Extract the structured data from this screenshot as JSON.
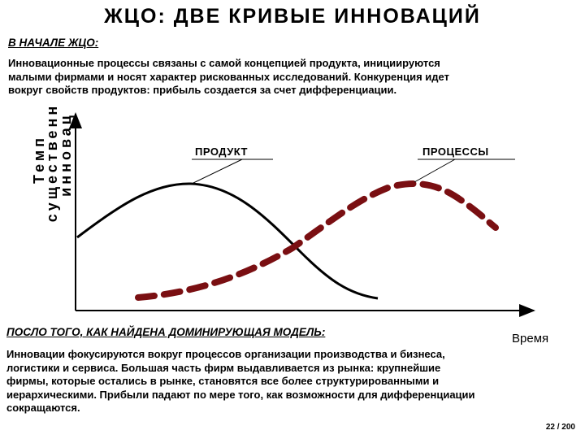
{
  "title": "ЖЦО: ДВЕ КРИВЫЕ ИННОВАЦИЙ",
  "intro": {
    "heading": "В НАЧАЛЕ ЖЦО:",
    "lines": [
      "Инновационные процессы связаны с самой концепцией продукта, инициируются",
      "малыми фирмами и носят характер рискованных исследований. Конкуренция идет",
      "вокруг свойств продуктов: прибыль создается за счет дифференциации."
    ]
  },
  "diagram": {
    "y_axis_label": [
      "Темп",
      "существенн",
      "инновац"
    ],
    "x_axis_label": "Время",
    "curves": [
      {
        "label": "ПРОДУКТ"
      },
      {
        "label": "ПРОЦЕССЫ"
      }
    ]
  },
  "later": {
    "heading": "ПОСЛО ТОГО, КАК НАЙДЕНА ДОМИНИРУЮЩАЯ МОДЕЛЬ:",
    "lines": [
      "Инновации фокусируются вокруг процессов организации производства и бизнеса,",
      "логистики и сервиса. Большая часть фирм выдавливается из рынка: крупнейшие",
      "фирмы, которые остались в рынке, становятся все более структурированными и",
      "иерархическими. Прибыли падают по мере того, как возможности для дифференциации",
      "сокращаются."
    ]
  },
  "page_number": "22 / 200"
}
